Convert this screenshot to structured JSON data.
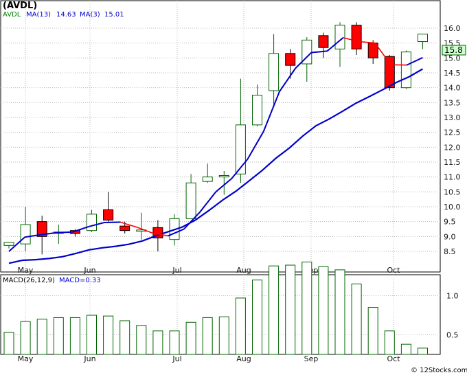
{
  "header": {
    "symbol": "(AVDL)",
    "ticker": "AVDL",
    "ma13_label": "MA(13)",
    "ma13_value": "14.63",
    "ma3_label": "MA(3)",
    "ma3_value": "15.01"
  },
  "macd_header": {
    "params": "MACD(26,12,9)",
    "value_label": "MACD=0.33"
  },
  "last_price_badge": "15.8",
  "watermark": "© 12Stocks.com",
  "colors": {
    "up": "#006400",
    "down": "#ff0000",
    "ma13": "#0000cc",
    "ma3": "#ff0000",
    "badge_bg": "#ccffcc"
  },
  "chart_data": [
    {
      "type": "candlestick",
      "period": "weekly",
      "x_tick_labels": [
        "May",
        "Jun",
        "Jul",
        "Aug",
        "Sep",
        "Oct"
      ],
      "y_ticks": [
        "8.5",
        "9.0",
        "9.5",
        "10.0",
        "10.5",
        "11.0",
        "11.5",
        "12.0",
        "12.5",
        "13.0",
        "13.5",
        "14.0",
        "14.5",
        "15.0",
        "15.5",
        "16.0"
      ],
      "ylim": [
        8.0,
        16.5
      ],
      "grid": true,
      "candles": [
        {
          "o": 8.7,
          "h": 8.8,
          "l": 8.6,
          "c": 8.8
        },
        {
          "o": 8.75,
          "h": 10.0,
          "l": 8.5,
          "c": 9.4
        },
        {
          "o": 9.5,
          "h": 9.7,
          "l": 8.4,
          "c": 9.0
        },
        {
          "o": 9.15,
          "h": 9.4,
          "l": 8.75,
          "c": 9.15
        },
        {
          "o": 9.2,
          "h": 9.25,
          "l": 9.0,
          "c": 9.1
        },
        {
          "o": 9.2,
          "h": 9.9,
          "l": 9.15,
          "c": 9.75
        },
        {
          "o": 9.9,
          "h": 10.5,
          "l": 9.5,
          "c": 9.55
        },
        {
          "o": 9.35,
          "h": 9.5,
          "l": 9.1,
          "c": 9.2
        },
        {
          "o": 9.18,
          "h": 9.8,
          "l": 8.9,
          "c": 9.22
        },
        {
          "o": 9.3,
          "h": 9.55,
          "l": 8.5,
          "c": 8.95
        },
        {
          "o": 8.9,
          "h": 9.75,
          "l": 8.7,
          "c": 9.6
        },
        {
          "o": 9.6,
          "h": 11.1,
          "l": 9.6,
          "c": 10.8
        },
        {
          "o": 10.85,
          "h": 11.45,
          "l": 10.8,
          "c": 11.0
        },
        {
          "o": 11.0,
          "h": 11.2,
          "l": 10.4,
          "c": 11.05
        },
        {
          "o": 11.1,
          "h": 14.3,
          "l": 10.8,
          "c": 12.75
        },
        {
          "o": 12.75,
          "h": 14.1,
          "l": 12.7,
          "c": 13.75
        },
        {
          "o": 13.9,
          "h": 15.8,
          "l": 13.4,
          "c": 15.15
        },
        {
          "o": 15.15,
          "h": 15.3,
          "l": 14.3,
          "c": 14.75
        },
        {
          "o": 14.8,
          "h": 15.7,
          "l": 14.2,
          "c": 15.6
        },
        {
          "o": 15.75,
          "h": 15.85,
          "l": 15.0,
          "c": 15.35
        },
        {
          "o": 15.3,
          "h": 16.2,
          "l": 14.7,
          "c": 16.1
        },
        {
          "o": 16.1,
          "h": 16.2,
          "l": 15.1,
          "c": 15.3
        },
        {
          "o": 15.5,
          "h": 15.6,
          "l": 14.8,
          "c": 15.0
        },
        {
          "o": 15.05,
          "h": 15.1,
          "l": 13.9,
          "c": 14.0
        },
        {
          "o": 14.0,
          "h": 15.25,
          "l": 13.95,
          "c": 15.2
        },
        {
          "o": 15.55,
          "h": 15.8,
          "l": 15.3,
          "c": 15.8
        }
      ],
      "ma13": [
        8.1,
        8.2,
        8.22,
        8.26,
        8.32,
        8.43,
        8.55,
        8.62,
        8.67,
        8.74,
        8.85,
        9.02,
        9.17,
        9.32,
        9.56,
        9.88,
        10.22,
        10.52,
        10.87,
        11.23,
        11.63,
        11.97,
        12.37,
        12.72,
        12.95,
        13.21,
        13.48,
        13.7,
        13.93,
        14.17,
        14.37,
        14.63
      ],
      "ma3": [
        8.5,
        8.98,
        9.06,
        9.13,
        9.15,
        9.33,
        9.47,
        9.48,
        9.32,
        9.12,
        9.02,
        9.25,
        9.82,
        10.5,
        10.95,
        11.6,
        12.53,
        13.87,
        14.65,
        15.18,
        15.23,
        15.68,
        15.55,
        15.5,
        14.77,
        14.76,
        15.01
      ],
      "ma13_start_index": -6
    },
    {
      "type": "bar",
      "title": "MACD(26,12,9)",
      "y_ticks": [
        "0.5",
        "1.0"
      ],
      "ylim": [
        0.3,
        1.55
      ],
      "values": [
        0.53,
        0.67,
        0.7,
        0.72,
        0.72,
        0.75,
        0.74,
        0.68,
        0.62,
        0.55,
        0.55,
        0.66,
        0.72,
        0.73,
        0.97,
        1.2,
        1.38,
        1.39,
        1.43,
        1.37,
        1.33,
        1.15,
        0.85,
        0.55,
        0.38,
        0.33
      ]
    }
  ]
}
